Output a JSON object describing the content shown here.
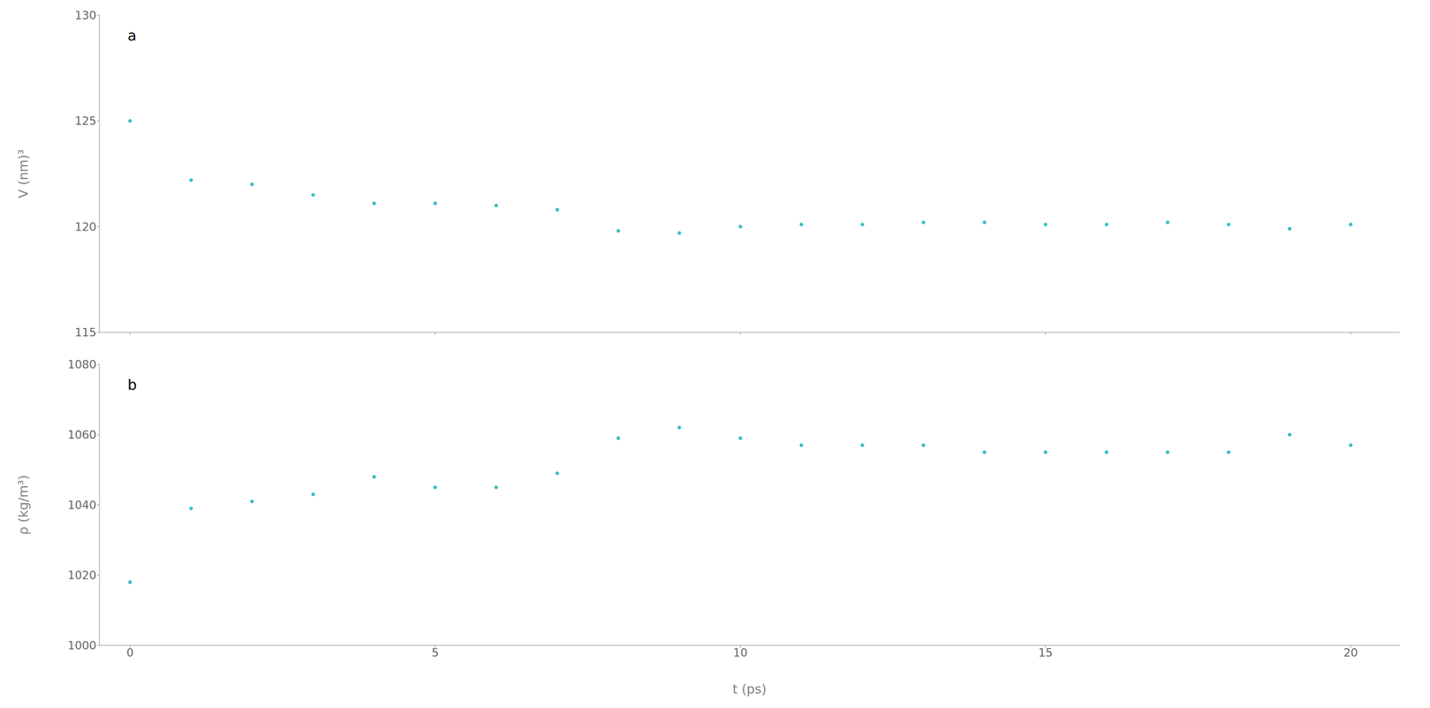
{
  "chart_data": [
    {
      "type": "scatter",
      "ylabel": "V (nm)³",
      "annotations": [
        "a"
      ],
      "x": [
        0,
        1,
        2,
        3,
        4,
        5,
        6,
        7,
        8,
        9,
        10,
        11,
        12,
        13,
        14,
        15,
        16,
        17,
        18,
        19,
        20
      ],
      "values": [
        125.0,
        122.2,
        122.0,
        121.5,
        121.1,
        121.1,
        121.0,
        120.8,
        119.8,
        119.7,
        120.0,
        120.1,
        120.1,
        120.2,
        120.2,
        120.1,
        120.1,
        120.2,
        120.1,
        119.9,
        120.1
      ],
      "color": "#3bbfc4",
      "marker": "circle",
      "xlim": [
        -0.5,
        20.8
      ],
      "xticks": [
        0,
        5,
        10,
        15,
        20
      ],
      "ylim": [
        115,
        130
      ],
      "yticks": [
        115,
        120,
        125,
        130
      ],
      "grid": false,
      "tick_labels": "y"
    },
    {
      "type": "scatter",
      "xlabel": "t (ps)",
      "ylabel": "ρ (kg/m³)",
      "annotations": [
        "b"
      ],
      "x": [
        0,
        1,
        2,
        3,
        4,
        5,
        6,
        7,
        8,
        9,
        10,
        11,
        12,
        13,
        14,
        15,
        16,
        17,
        18,
        19,
        20
      ],
      "values": [
        1018,
        1039,
        1041,
        1043,
        1048,
        1045,
        1045,
        1049,
        1059,
        1062,
        1059,
        1057,
        1057,
        1057,
        1055,
        1055,
        1055,
        1055,
        1055,
        1060,
        1057
      ],
      "color": "#3bbfc4",
      "marker": "circle",
      "xlim": [
        -0.5,
        20.8
      ],
      "xticks": [
        0,
        5,
        10,
        15,
        20
      ],
      "ylim": [
        1000,
        1080
      ],
      "yticks": [
        1000,
        1020,
        1040,
        1060,
        1080
      ],
      "grid": false
    }
  ]
}
